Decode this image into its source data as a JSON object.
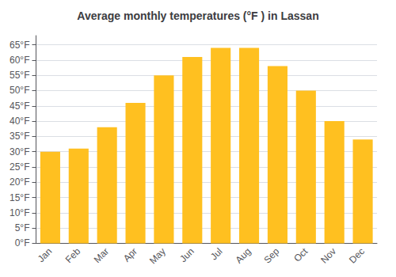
{
  "chart_data": {
    "type": "bar",
    "title": "Average monthly temperatures (°F ) in Lassan",
    "categories": [
      "Jan",
      "Feb",
      "Mar",
      "Apr",
      "May",
      "Jun",
      "Jul",
      "Aug",
      "Sep",
      "Oct",
      "Nov",
      "Dec"
    ],
    "values": [
      30,
      31,
      38,
      46,
      55,
      61,
      64,
      64,
      58,
      50,
      40,
      34
    ],
    "color": "#FFC020",
    "ylim": [
      0,
      68
    ],
    "yticks": [
      {
        "value": 0,
        "label": "0°F"
      },
      {
        "value": 5,
        "label": "5°F"
      },
      {
        "value": 10,
        "label": "10°F"
      },
      {
        "value": 15,
        "label": "15°F"
      },
      {
        "value": 20,
        "label": "20°F"
      },
      {
        "value": 25,
        "label": "25°F"
      },
      {
        "value": 30,
        "label": "30°F"
      },
      {
        "value": 35,
        "label": "35°F"
      },
      {
        "value": 40,
        "label": "40°F"
      },
      {
        "value": 45,
        "label": "45°F"
      },
      {
        "value": 50,
        "label": "50°F"
      },
      {
        "value": 55,
        "label": "55°F"
      },
      {
        "value": 60,
        "label": "60°F"
      },
      {
        "value": 65,
        "label": "65°F"
      }
    ],
    "grid": true
  }
}
